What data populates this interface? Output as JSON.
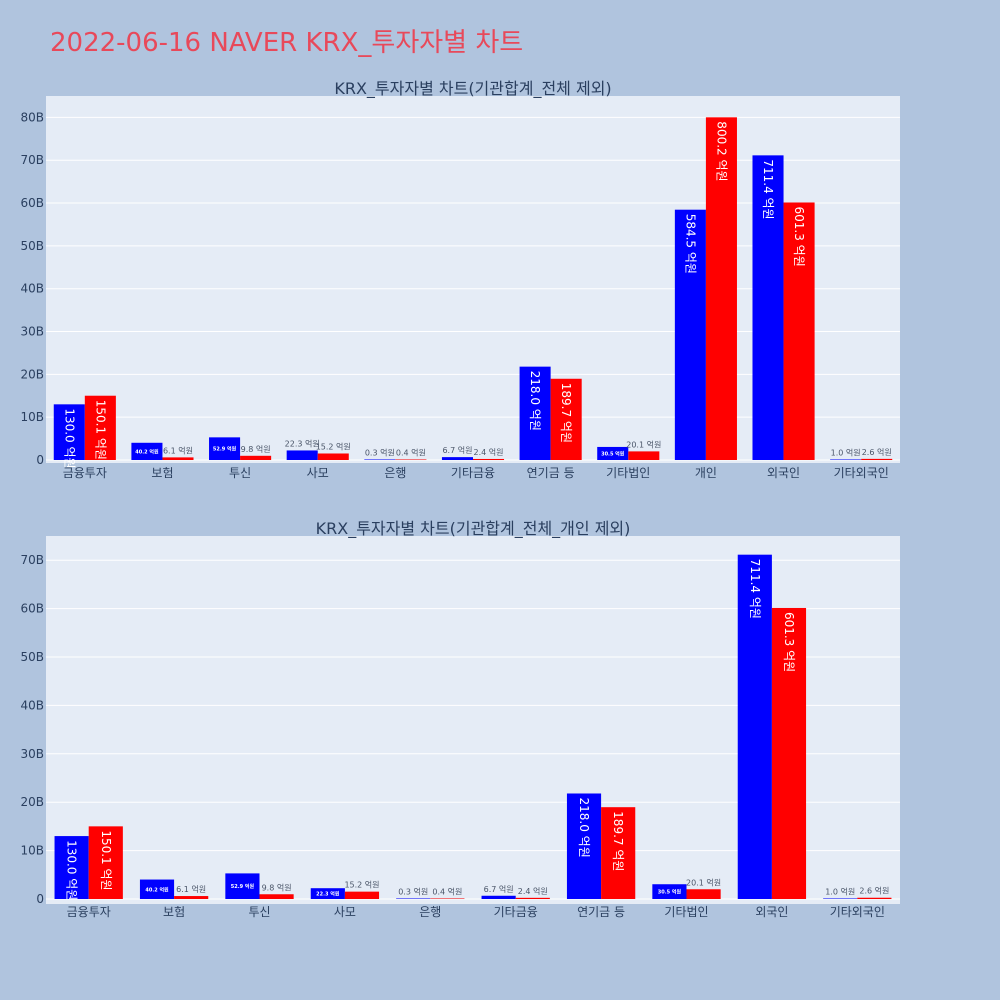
{
  "header": {
    "title": "2022-06-16 NAVER KRX_투자자별 차트"
  },
  "colors": {
    "background": "#b0c4de",
    "plot_background": "#e5ecf6",
    "title": "#e8495a",
    "series_buy": "#0000ff",
    "series_sell": "#ff0000",
    "text": "#2a3f5f"
  },
  "chart_data": [
    {
      "type": "bar",
      "title": "KRX_투자자별 차트(기관합계_전체 제외)",
      "xlabel": "",
      "ylabel": "",
      "categories": [
        "금융투자",
        "보험",
        "투신",
        "사모",
        "은행",
        "기타금융",
        "연기금 등",
        "기타법인",
        "개인",
        "외국인",
        "기타외국인"
      ],
      "ylim": [
        0,
        85
      ],
      "yticks": [
        0,
        10,
        20,
        30,
        40,
        50,
        60,
        70,
        80
      ],
      "ytick_labels": [
        "0",
        "10B",
        "20B",
        "30B",
        "40B",
        "50B",
        "60B",
        "70B",
        "80B"
      ],
      "series": [
        {
          "color": "#0000ff",
          "values": [
            13.0,
            4.02,
            5.29,
            2.23,
            0.03,
            0.67,
            21.8,
            3.05,
            58.45,
            71.14,
            0.1
          ],
          "labels": [
            "130.0 억원",
            "40.2 억원",
            "52.9 억원",
            "22.3 억원",
            "0.3 억원",
            "6.7 억원",
            "218.0 억원",
            "30.5 억원",
            "584.5 억원",
            "711.4 억원",
            "1.0 억원"
          ]
        },
        {
          "color": "#ff0000",
          "values": [
            15.01,
            0.61,
            0.98,
            1.52,
            0.04,
            0.24,
            18.97,
            2.01,
            80.02,
            60.13,
            0.26
          ],
          "labels": [
            "150.1 억원",
            "6.1 억원",
            "9.8 억원",
            "15.2 억원",
            "0.4 억원",
            "2.4 억원",
            "189.7 억원",
            "20.1 억원",
            "800.2 억원",
            "601.3 억원",
            "2.6 억원"
          ]
        }
      ]
    },
    {
      "type": "bar",
      "title": "KRX_투자자별 차트(기관합계_전체_개인 제외)",
      "xlabel": "",
      "ylabel": "",
      "categories": [
        "금융투자",
        "보험",
        "투신",
        "사모",
        "은행",
        "기타금융",
        "연기금 등",
        "기타법인",
        "외국인",
        "기타외국인"
      ],
      "ylim": [
        0,
        75
      ],
      "yticks": [
        0,
        10,
        20,
        30,
        40,
        50,
        60,
        70
      ],
      "ytick_labels": [
        "0",
        "10B",
        "20B",
        "30B",
        "40B",
        "50B",
        "60B",
        "70B"
      ],
      "series": [
        {
          "color": "#0000ff",
          "values": [
            13.0,
            4.02,
            5.29,
            2.23,
            0.03,
            0.67,
            21.8,
            3.05,
            71.14,
            0.1
          ],
          "labels": [
            "130.0 억원",
            "40.2 억원",
            "52.9 억원",
            "22.3 억원",
            "0.3 억원",
            "6.7 억원",
            "218.0 억원",
            "30.5 억원",
            "711.4 억원",
            "1.0 억원"
          ]
        },
        {
          "color": "#ff0000",
          "values": [
            15.01,
            0.61,
            0.98,
            1.52,
            0.04,
            0.24,
            18.97,
            2.01,
            60.13,
            0.26
          ],
          "labels": [
            "150.1 억원",
            "6.1 억원",
            "9.8 억원",
            "15.2 억원",
            "0.4 억원",
            "2.4 억원",
            "189.7 억원",
            "20.1 억원",
            "601.3 억원",
            "2.6 억원"
          ]
        }
      ]
    }
  ]
}
